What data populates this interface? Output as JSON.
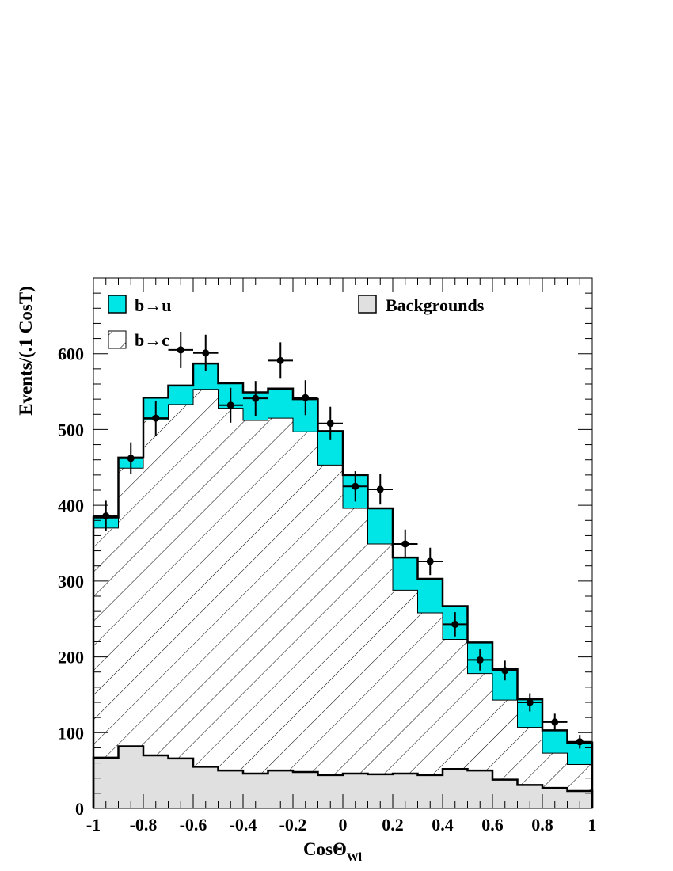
{
  "chart_data": {
    "type": "histogram",
    "xlabel": "CosΘ",
    "xlabel_sub": "Wl",
    "ylabel": "Events/(.1 CosT)",
    "xlim": [
      -1,
      1
    ],
    "ylim": [
      0,
      700
    ],
    "bin_edges": [
      -1,
      -0.9,
      -0.8,
      -0.7,
      -0.6,
      -0.5,
      -0.4,
      -0.3,
      -0.2,
      -0.1,
      0,
      0.1,
      0.2,
      0.3,
      0.4,
      0.5,
      0.6,
      0.7,
      0.8,
      0.9,
      1.0
    ],
    "x_ticks": [
      -1,
      -0.8,
      -0.6,
      -0.4,
      -0.2,
      0,
      0.2,
      0.4,
      0.6,
      0.8,
      1
    ],
    "x_tick_labels": [
      "-1",
      "-0.8",
      "-0.6",
      "-0.4",
      "-0.2",
      "0",
      "0.2",
      "0.4",
      "0.6",
      "0.8",
      "1"
    ],
    "y_ticks": [
      0,
      100,
      200,
      300,
      400,
      500,
      600
    ],
    "y_tick_labels": [
      "0",
      "100",
      "200",
      "300",
      "400",
      "500",
      "600"
    ],
    "series": [
      {
        "name": "Backgrounds",
        "style": "filled",
        "color": "#e0e0e0",
        "values": [
          67,
          82,
          70,
          66,
          55,
          50,
          46,
          50,
          48,
          44,
          46,
          45,
          46,
          44,
          52,
          50,
          38,
          31,
          27,
          23
        ]
      },
      {
        "name": "b→c",
        "style": "hatched",
        "color": "#000000",
        "values": [
          370,
          449,
          513,
          533,
          553,
          528,
          512,
          515,
          497,
          453,
          396,
          349,
          288,
          258,
          223,
          178,
          143,
          107,
          73,
          58
        ]
      },
      {
        "name": "b→u",
        "style": "filled",
        "color": "#00e5e5",
        "values": [
          384,
          463,
          542,
          558,
          587,
          561,
          549,
          554,
          540,
          498,
          440,
          396,
          331,
          303,
          267,
          219,
          184,
          144,
          103,
          87
        ]
      },
      {
        "name": "Data",
        "style": "points",
        "color": "#000000",
        "x": [
          -0.95,
          -0.85,
          -0.75,
          -0.65,
          -0.55,
          -0.45,
          -0.35,
          -0.25,
          -0.15,
          -0.05,
          0.05,
          0.15,
          0.25,
          0.35,
          0.45,
          0.55,
          0.65,
          0.75,
          0.85,
          0.95
        ],
        "values": [
          386,
          462,
          515,
          605,
          601,
          532,
          541,
          591,
          542,
          508,
          425,
          421,
          349,
          326,
          243,
          196,
          182,
          140,
          114,
          88
        ],
        "errors": [
          20,
          21,
          23,
          24,
          24,
          23,
          23,
          24,
          23,
          22,
          20,
          20,
          19,
          18,
          16,
          14,
          13,
          12,
          11,
          9
        ]
      }
    ],
    "legend": [
      {
        "label": "b→u",
        "swatch": "cyan"
      },
      {
        "label": "b→c",
        "swatch": "hatched"
      },
      {
        "label": "Backgrounds",
        "swatch": "gray"
      }
    ],
    "grid": false
  }
}
